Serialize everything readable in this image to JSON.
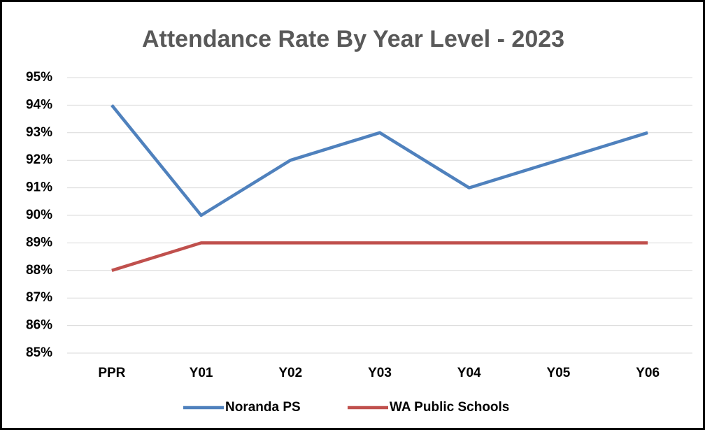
{
  "chart_data": {
    "type": "line",
    "title": "Attendance Rate By Year Level - 2023",
    "categories": [
      "PPR",
      "Y01",
      "Y02",
      "Y03",
      "Y04",
      "Y05",
      "Y06"
    ],
    "series": [
      {
        "name": "Noranda PS",
        "color": "#4f81bd",
        "values": [
          94,
          90,
          92,
          93,
          91,
          92,
          93
        ]
      },
      {
        "name": "WA Public Schools",
        "color": "#c0504d",
        "values": [
          88,
          89,
          89,
          89,
          89,
          89,
          89
        ]
      }
    ],
    "ylim": [
      85,
      95
    ],
    "yticks": [
      {
        "value": 85,
        "label": "85%"
      },
      {
        "value": 86,
        "label": "86%"
      },
      {
        "value": 87,
        "label": "87%"
      },
      {
        "value": 88,
        "label": "88%"
      },
      {
        "value": 89,
        "label": "89%"
      },
      {
        "value": 90,
        "label": "90%"
      },
      {
        "value": 91,
        "label": "91%"
      },
      {
        "value": 92,
        "label": "92%"
      },
      {
        "value": 93,
        "label": "93%"
      },
      {
        "value": 94,
        "label": "94%"
      },
      {
        "value": 95,
        "label": "95%"
      }
    ],
    "grid": true,
    "legend": "bottom"
  }
}
